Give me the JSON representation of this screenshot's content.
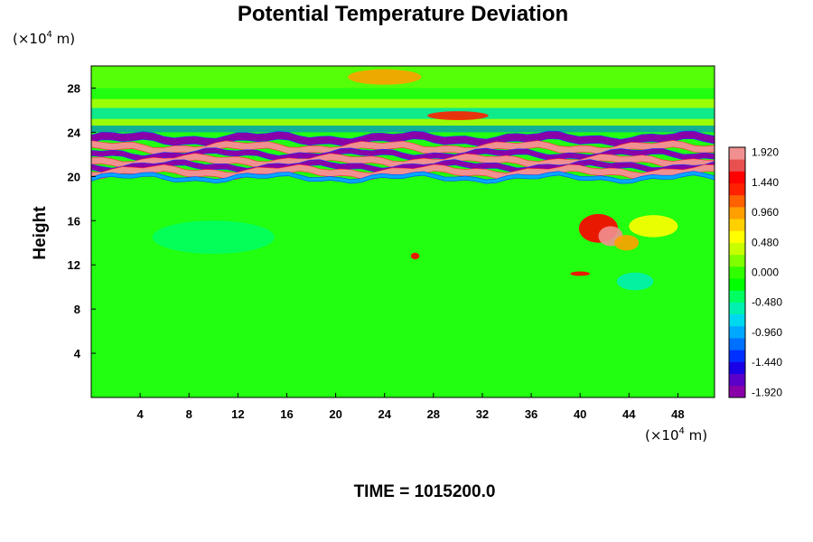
{
  "chart_data": {
    "type": "heatmap",
    "title": "Potential Temperature Deviation",
    "ylabel": "Height",
    "x_unit_prefix": "(×10",
    "x_unit_exp": "4",
    "x_unit_suffix": " m)",
    "y_unit_prefix": "(×10",
    "y_unit_exp": "4",
    "y_unit_suffix": " m)",
    "xlim": [
      0,
      51
    ],
    "ylim": [
      0,
      30
    ],
    "x_ticks": [
      4,
      8,
      12,
      16,
      20,
      24,
      28,
      32,
      36,
      40,
      44,
      48
    ],
    "y_ticks": [
      4,
      8,
      12,
      16,
      20,
      24,
      28
    ],
    "colorbar": {
      "ticks": [
        "1.920",
        "1.440",
        "0.960",
        "0.480",
        "0.000",
        "-0.480",
        "-0.960",
        "-1.440",
        "-1.920"
      ],
      "min": -2.0,
      "max": 2.0,
      "colors": [
        "#8a00a8",
        "#5a00c8",
        "#1a00e6",
        "#0030ff",
        "#0070ff",
        "#00a8ff",
        "#00d8f0",
        "#00f0b0",
        "#00ff60",
        "#00ff00",
        "#30ff00",
        "#80ff00",
        "#c8ff00",
        "#ffff00",
        "#ffd000",
        "#ffa000",
        "#ff6000",
        "#ff2000",
        "#ff0000",
        "#e85050",
        "#f09090"
      ]
    },
    "field_bands": [
      {
        "y": 21.0,
        "value": 1.9
      },
      {
        "y": 20.5,
        "value": -1.9
      },
      {
        "y": 22.0,
        "value": 1.9
      },
      {
        "y": 23.2,
        "value": -1.9
      }
    ],
    "features": [
      {
        "x": 41.5,
        "y": 15.0,
        "value": 1.5
      },
      {
        "x": 26.5,
        "y": 12.8,
        "value": 1.5
      },
      {
        "x": 24.0,
        "y": 29.0,
        "value": 1.0
      }
    ]
  },
  "time_label": "TIME = 1015200.0"
}
